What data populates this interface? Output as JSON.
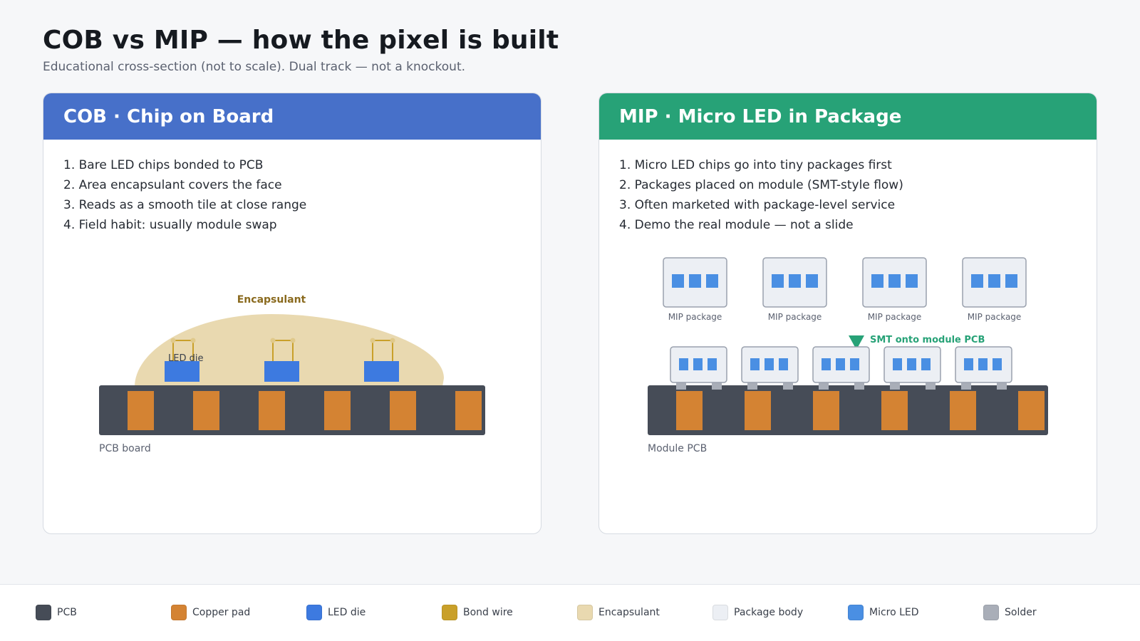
{
  "header": {
    "title": "COB vs MIP — how the pixel is built",
    "subtitle": "Educational cross-section (not to scale). Dual track — not a knockout."
  },
  "cob": {
    "title": "COB  ·  Chip on Board",
    "steps": [
      "1. Bare LED chips bonded to PCB",
      "2. Area encapsulant covers the face",
      "3. Reads as a smooth tile at close range",
      "4. Field habit: usually module swap"
    ],
    "encapsulant_label": "Encapsulant",
    "die_label": "LED die",
    "board_label": "PCB board"
  },
  "mip": {
    "title": "MIP  ·  Micro LED in Package",
    "steps": [
      "1. Micro LED chips go into tiny packages first",
      "2. Packages placed on module (SMT-style flow)",
      "3. Often marketed with package-level service",
      "4. Demo the real module — not a slide"
    ],
    "package_labels": [
      "MIP package",
      "MIP package",
      "MIP package",
      "MIP package"
    ],
    "arrow_label": "SMT onto module PCB",
    "board_label": "Module PCB"
  },
  "legend": [
    {
      "label": "PCB",
      "color": "#464c57"
    },
    {
      "label": "Copper pad",
      "color": "#d48333"
    },
    {
      "label": "LED die",
      "color": "#3d7ae0"
    },
    {
      "label": "Bond wire",
      "color": "#c9a02a"
    },
    {
      "label": "Encapsulant",
      "color": "#e9d9b0"
    },
    {
      "label": "Package body",
      "color": "#eceff4"
    },
    {
      "label": "Micro LED",
      "color": "#4a8fe3"
    },
    {
      "label": "Solder",
      "color": "#a9aeb8"
    }
  ]
}
